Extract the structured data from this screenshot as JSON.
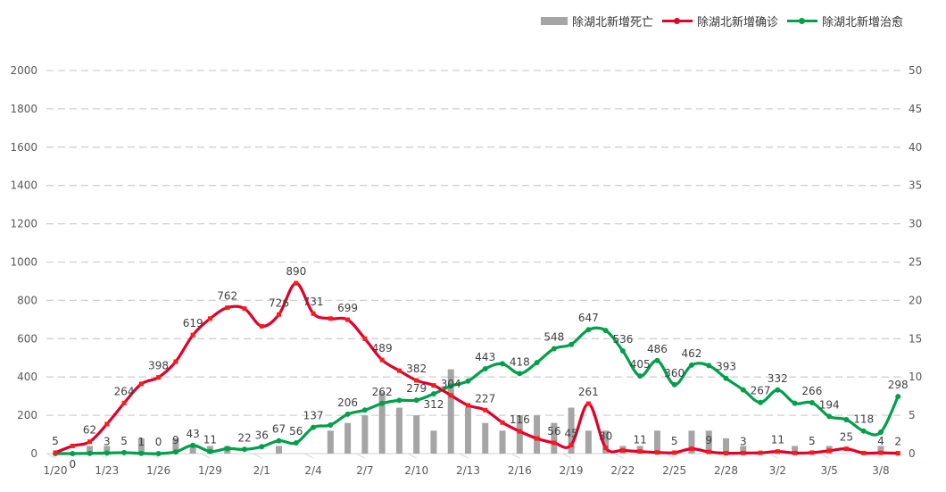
{
  "chart_data": {
    "type": "line",
    "title": "",
    "colors": {
      "deaths": "#a5a5a5",
      "confirmed": "#e0002a",
      "cured": "#00a04a",
      "grid": "#d0d0d0",
      "text": "#595959"
    },
    "x": [
      "1/20",
      "1/21",
      "1/22",
      "1/23",
      "1/24",
      "1/25",
      "1/26",
      "1/27",
      "1/28",
      "1/29",
      "1/30",
      "1/31",
      "2/1",
      "2/2",
      "2/3",
      "2/4",
      "2/5",
      "2/6",
      "2/7",
      "2/8",
      "2/9",
      "2/10",
      "2/11",
      "2/12",
      "2/13",
      "2/14",
      "2/15",
      "2/16",
      "2/17",
      "2/18",
      "2/19",
      "2/20",
      "2/21",
      "2/22",
      "2/23",
      "2/24",
      "2/25",
      "2/26",
      "2/27",
      "2/28",
      "2/29",
      "3/1",
      "3/2",
      "3/3",
      "3/4",
      "3/5",
      "3/6",
      "3/7",
      "3/8",
      "3/9"
    ],
    "x_tick_labels": [
      "1/20",
      "1/23",
      "1/26",
      "1/29",
      "2/1",
      "2/4",
      "2/7",
      "2/10",
      "2/13",
      "2/16",
      "2/19",
      "2/22",
      "2/25",
      "2/28",
      "3/2",
      "3/5",
      "3/8"
    ],
    "y_left": {
      "ylim": [
        0,
        2000
      ],
      "ticks": [
        "0",
        "200",
        "400",
        "600",
        "800",
        "1000",
        "1200",
        "1400",
        "1600",
        "1800",
        "2000"
      ]
    },
    "y_right": {
      "ylim": [
        0,
        50
      ],
      "ticks": [
        "0",
        "5",
        "10",
        "15",
        "20",
        "25",
        "30",
        "35",
        "40",
        "45",
        "50"
      ]
    },
    "grid": true,
    "legend_position": "top-right",
    "series": [
      {
        "key": "deaths",
        "name": "除湖北新增死亡",
        "type": "bar",
        "axis": "right",
        "values": [
          0,
          0,
          1,
          1,
          0,
          2,
          0,
          2,
          1,
          1,
          1,
          0,
          0,
          1,
          0,
          0,
          3,
          4,
          5,
          8,
          6,
          5,
          3,
          11,
          6,
          4,
          3,
          5,
          5,
          4,
          6,
          3,
          3,
          1,
          1,
          3,
          0,
          3,
          3,
          2,
          1,
          0,
          0,
          1,
          0,
          1,
          0,
          0,
          1,
          0
        ]
      },
      {
        "key": "confirmed",
        "name": "除湖北新增确诊",
        "type": "line",
        "axis": "left",
        "values": [
          5,
          40,
          62,
          154,
          264,
          364,
          398,
          480,
          619,
          705,
          762,
          757,
          665,
          726,
          890,
          731,
          705,
          699,
          600,
          489,
          433,
          382,
          356,
          304,
          252,
          227,
          162,
          116,
          79,
          56,
          45,
          261,
          30,
          17,
          11,
          6,
          5,
          25,
          9,
          2,
          3,
          4,
          11,
          3,
          5,
          15,
          25,
          3,
          4,
          2
        ],
        "labels": [
          "5",
          null,
          "62",
          null,
          "264",
          null,
          "398",
          null,
          "619",
          null,
          "762",
          null,
          null,
          "726",
          "890",
          "731",
          null,
          "699",
          null,
          "489",
          null,
          "382",
          null,
          "304",
          null,
          "227",
          null,
          "116",
          null,
          "56",
          "45",
          "261",
          "30",
          null,
          "11",
          null,
          "5",
          null,
          "9",
          null,
          "3",
          null,
          "11",
          null,
          "5",
          null,
          "25",
          null,
          "4",
          "2"
        ]
      },
      {
        "key": "cured",
        "name": "除湖北新增治愈",
        "type": "line",
        "axis": "left",
        "values": [
          0,
          0,
          1,
          3,
          5,
          1,
          0,
          9,
          43,
          11,
          26,
          22,
          36,
          67,
          56,
          137,
          149,
          206,
          227,
          262,
          278,
          279,
          312,
          353,
          379,
          443,
          469,
          418,
          475,
          548,
          570,
          647,
          643,
          536,
          405,
          486,
          360,
          462,
          460,
          393,
          333,
          267,
          332,
          263,
          266,
          194,
          177,
          118,
          112,
          298
        ],
        "labels": [
          null,
          "0",
          null,
          "3",
          "5",
          "1",
          "0",
          "9",
          "43",
          "11",
          null,
          "22",
          "36",
          "67",
          "56",
          "137",
          null,
          "206",
          null,
          "262",
          null,
          "279",
          "312",
          null,
          null,
          "443",
          null,
          "418",
          null,
          "548",
          null,
          "647",
          null,
          "536",
          "405",
          "486",
          "360",
          "462",
          null,
          "393",
          null,
          "267",
          "332",
          null,
          "266",
          "194",
          null,
          "118",
          null,
          "298"
        ]
      }
    ]
  }
}
